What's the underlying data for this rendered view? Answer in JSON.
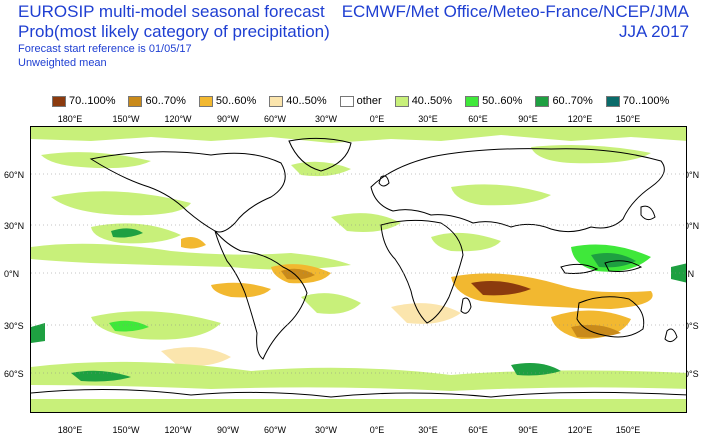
{
  "header": {
    "title_line1": "EUROSIP multi-model seasonal forecast",
    "title_line2": "Prob(most likely category of precipitation)",
    "forecast_ref": "Forecast start reference is 01/05/17",
    "mean_type": "Unweighted mean",
    "agencies": "ECMWF/Met Office/Meteo-France/NCEP/JMA",
    "season": "JJA 2017"
  },
  "legend": [
    {
      "label": "70..100%",
      "color": "#8b3a0e"
    },
    {
      "label": "60..70%",
      "color": "#c98a1a"
    },
    {
      "label": "50..60%",
      "color": "#f2b830"
    },
    {
      "label": "40..50%",
      "color": "#fbe5ad"
    },
    {
      "label": "other",
      "color": "#ffffff"
    },
    {
      "label": "40..50%",
      "color": "#c8f07a"
    },
    {
      "label": "50..60%",
      "color": "#3fe83a"
    },
    {
      "label": "60..70%",
      "color": "#1ea041"
    },
    {
      "label": "70..100%",
      "color": "#0a6b6a"
    }
  ],
  "axes": {
    "lon_labels": [
      "180°E",
      "150°W",
      "120°W",
      "90°W",
      "60°W",
      "30°W",
      "0°E",
      "30°E",
      "60°E",
      "90°E",
      "120°E",
      "150°E"
    ],
    "lat_labels": [
      "60°N",
      "30°N",
      "0°N",
      "30°S",
      "60°S"
    ]
  }
}
